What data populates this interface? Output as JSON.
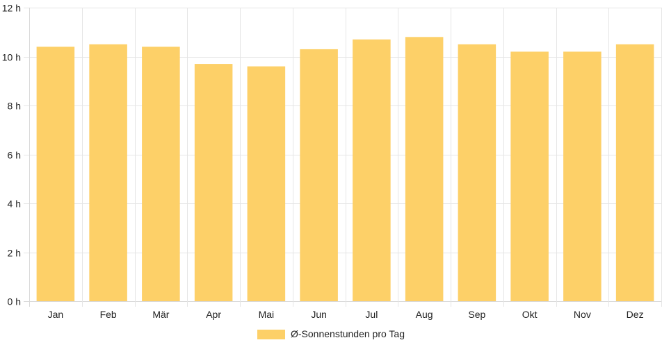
{
  "chart_data": {
    "type": "bar",
    "categories": [
      "Jan",
      "Feb",
      "Mär",
      "Apr",
      "Mai",
      "Jun",
      "Jul",
      "Aug",
      "Sep",
      "Okt",
      "Nov",
      "Dez"
    ],
    "series": [
      {
        "name": "Ø-Sonnenstunden pro Tag",
        "values": [
          10.4,
          10.5,
          10.4,
          9.7,
          9.6,
          10.3,
          10.7,
          10.8,
          10.5,
          10.2,
          10.2,
          10.5
        ],
        "color": "#fdd068"
      }
    ],
    "yticks": [
      "0 h",
      "2 h",
      "4 h",
      "6 h",
      "8 h",
      "10 h",
      "12 h"
    ],
    "ylim": [
      0,
      12
    ],
    "ytick_step": 2,
    "grid": true,
    "legend_position": "bottom",
    "colors": {
      "grid": "#e5e5e5",
      "axis": "#d9d9d9",
      "text": "#222222"
    }
  }
}
